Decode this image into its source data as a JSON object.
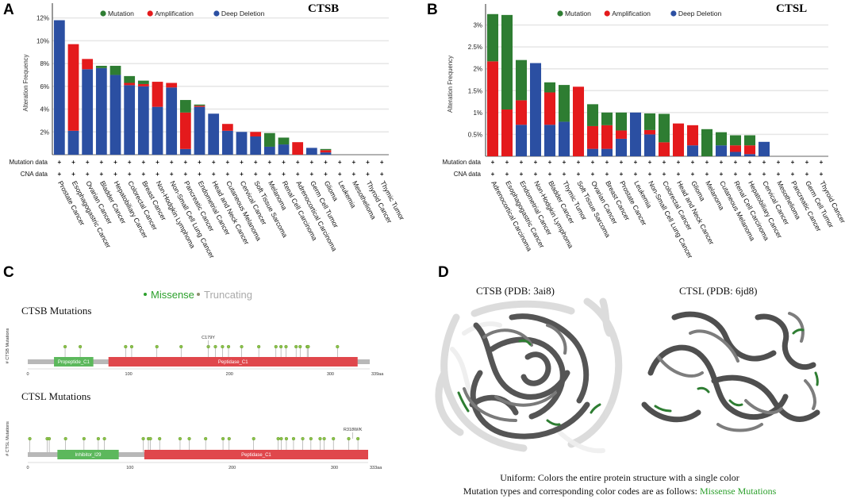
{
  "panels": {
    "a": {
      "label": "A"
    },
    "b": {
      "label": "B"
    },
    "c": {
      "label": "C"
    },
    "d": {
      "label": "D"
    }
  },
  "colors": {
    "mutation": "#2e7d32",
    "amplification": "#e41a1c",
    "deletion": "#2b4fa2",
    "missense": "#2ca02c",
    "truncating": "#999999",
    "backbone": "#b8b8b8",
    "domain_green": "#5cb85c",
    "domain_red": "#e0474c"
  },
  "chart_data": [
    {
      "type": "bar",
      "stacked": true,
      "title": "CTSB",
      "ylabel": "Alteration Frequency",
      "yticks": [
        "2%",
        "4%",
        "6%",
        "8%",
        "10%",
        "12%"
      ],
      "ylim": [
        0,
        12.6
      ],
      "legend": [
        "Mutation",
        "Amplification",
        "Deep Deletion"
      ],
      "row_labels": [
        "Mutation data",
        "CNA data"
      ],
      "row_marker": "+",
      "categories": [
        "Prostate Cancer",
        "Esophagogastric Cancer",
        "Ovarian Cancer",
        "Bladder Cancer",
        "Hepatobiliary Cancer",
        "Colorectal Cancer",
        "Breast Cancer",
        "Non-Hodgkin Lymphoma",
        "Non-Small Cell Lung Cancer",
        "Pancreatic Cancer",
        "Endometrial Cancer",
        "Head and Neck Cancer",
        "Cutaneous Melanoma",
        "Cervical Cancer",
        "Soft Tissue Sarcoma",
        "Melanoma",
        "Renal Cell Carcinoma",
        "Adrenocortical Carcinoma",
        "Germ Cell Tumor",
        "Glioma",
        "Leukemia",
        "Mesothelioma",
        "Thyroid Cancer",
        "Thymic Tumor"
      ],
      "series": [
        {
          "name": "Deep Deletion",
          "values": [
            11.8,
            2.1,
            7.5,
            7.6,
            7.0,
            6.1,
            6.0,
            4.2,
            5.9,
            0.5,
            4.2,
            3.6,
            2.1,
            2.0,
            1.6,
            0.7,
            0.9,
            0,
            0.6,
            0.2,
            0,
            0,
            0,
            0
          ]
        },
        {
          "name": "Amplification",
          "values": [
            0,
            7.6,
            0.9,
            0,
            0,
            0.2,
            0.2,
            2.2,
            0.4,
            3.2,
            0.1,
            0,
            0.6,
            0,
            0.4,
            0,
            0,
            1.1,
            0,
            0.2,
            0,
            0,
            0,
            0
          ]
        },
        {
          "name": "Mutation",
          "values": [
            0,
            0,
            0,
            0.2,
            0.8,
            0.6,
            0.3,
            0,
            0,
            1.1,
            0.1,
            0,
            0,
            0,
            0,
            1.2,
            0.6,
            0,
            0,
            0.1,
            0,
            0,
            0,
            0
          ]
        }
      ]
    },
    {
      "type": "bar",
      "stacked": true,
      "title": "CTSL",
      "ylabel": "Alteration Frequency",
      "yticks": [
        "0.5%",
        "1%",
        "1.5%",
        "2%",
        "2.5%",
        "3%"
      ],
      "ylim": [
        0,
        3.3
      ],
      "legend": [
        "Mutation",
        "Amplification",
        "Deep Deletion"
      ],
      "row_labels": [
        "Mutation data",
        "CNA data"
      ],
      "row_marker": "+",
      "categories": [
        "Adrenocortical Carcinoma",
        "Esophagogastric Cancer",
        "Endometrial Cancer",
        "Non-Hodgkin Lymphoma",
        "Bladder Cancer",
        "Thymic Tumor",
        "Soft Tissue Sarcoma",
        "Ovarian Cancer",
        "Breast Cancer",
        "Prostate Cancer",
        "Leukemia",
        "Non-Small Cell Lung Cancer",
        "Colorectal Cancer",
        "Head and Neck Cancer",
        "Glioma",
        "Melanoma",
        "Cutaneous Melanoma",
        "Renal Cell Carcinoma",
        "Hepatobiliary Cancer",
        "Cervical Cancer",
        "Mesothelioma",
        "Pancreatic Cancer",
        "Germ Cell Tumor",
        "Thyroid Cancer"
      ],
      "series": [
        {
          "name": "Deep Deletion",
          "values": [
            0,
            0,
            0.72,
            2.13,
            0.72,
            0.79,
            0,
            0.17,
            0.17,
            0.4,
            1.0,
            0.5,
            0,
            0,
            0.25,
            0,
            0.25,
            0.1,
            0.05,
            0.33,
            0,
            0,
            0,
            0
          ]
        },
        {
          "name": "Amplification",
          "values": [
            2.17,
            1.07,
            0.56,
            0,
            0.74,
            0,
            1.59,
            0.52,
            0.54,
            0.19,
            0,
            0.1,
            0.32,
            0.75,
            0.46,
            0,
            0,
            0.15,
            0.2,
            0,
            0,
            0,
            0,
            0
          ]
        },
        {
          "name": "Mutation",
          "values": [
            1.08,
            2.16,
            0.92,
            0,
            0.23,
            0.84,
            0,
            0.5,
            0.29,
            0.41,
            0,
            0.38,
            0.65,
            0,
            0,
            0.62,
            0.3,
            0.23,
            0.23,
            0,
            0,
            0,
            0,
            0
          ]
        }
      ]
    },
    {
      "type": "lollipop",
      "title": "CTSB Mutations",
      "ylabel": "# CTSB Mutations",
      "length": 339,
      "length_label": "339aa",
      "xticks": [
        0,
        100,
        200,
        300
      ],
      "domains": [
        {
          "name": "Propeptide_C1",
          "start": 26,
          "end": 65,
          "color": "green"
        },
        {
          "name": "Peptidase_C1",
          "start": 80,
          "end": 327,
          "color": "red"
        }
      ],
      "mutations": [
        37,
        52,
        97,
        103,
        128,
        152,
        179,
        186,
        193,
        199,
        212,
        229,
        246,
        251,
        256,
        266,
        270,
        277,
        278,
        307
      ],
      "annotation": {
        "label": "C179Y",
        "position": 179
      }
    },
    {
      "type": "lollipop",
      "title": "CTSL Mutations",
      "ylabel": "# CTSL Mutations",
      "length": 333,
      "length_label": "333aa",
      "xticks": [
        0,
        100,
        200,
        300
      ],
      "domains": [
        {
          "name": "Inhibitor_I29",
          "start": 29,
          "end": 89,
          "color": "green"
        },
        {
          "name": "Peptidase_C1",
          "start": 114,
          "end": 333,
          "color": "red"
        }
      ],
      "mutations": [
        2,
        19,
        21,
        37,
        55,
        69,
        75,
        113,
        118,
        120,
        129,
        149,
        158,
        174,
        191,
        197,
        221,
        245,
        248,
        253,
        260,
        269,
        277,
        286,
        290,
        299,
        314,
        323
      ],
      "annotation": {
        "label": "R318W/K",
        "position": 318
      }
    }
  ],
  "panel_c": {
    "legend_missense": "Missense",
    "legend_truncating": "Truncating"
  },
  "panel_d": {
    "title_left": "CTSB (PDB: 3ai8)",
    "title_right": "CTSL (PDB: 6jd8)",
    "caption_line1": "Uniform: Colors the entire protein structure with a single color",
    "caption_line2_prefix": "Mutation types and corresponding color codes are as follows: ",
    "caption_line2_highlight": "Missense Mutations"
  }
}
